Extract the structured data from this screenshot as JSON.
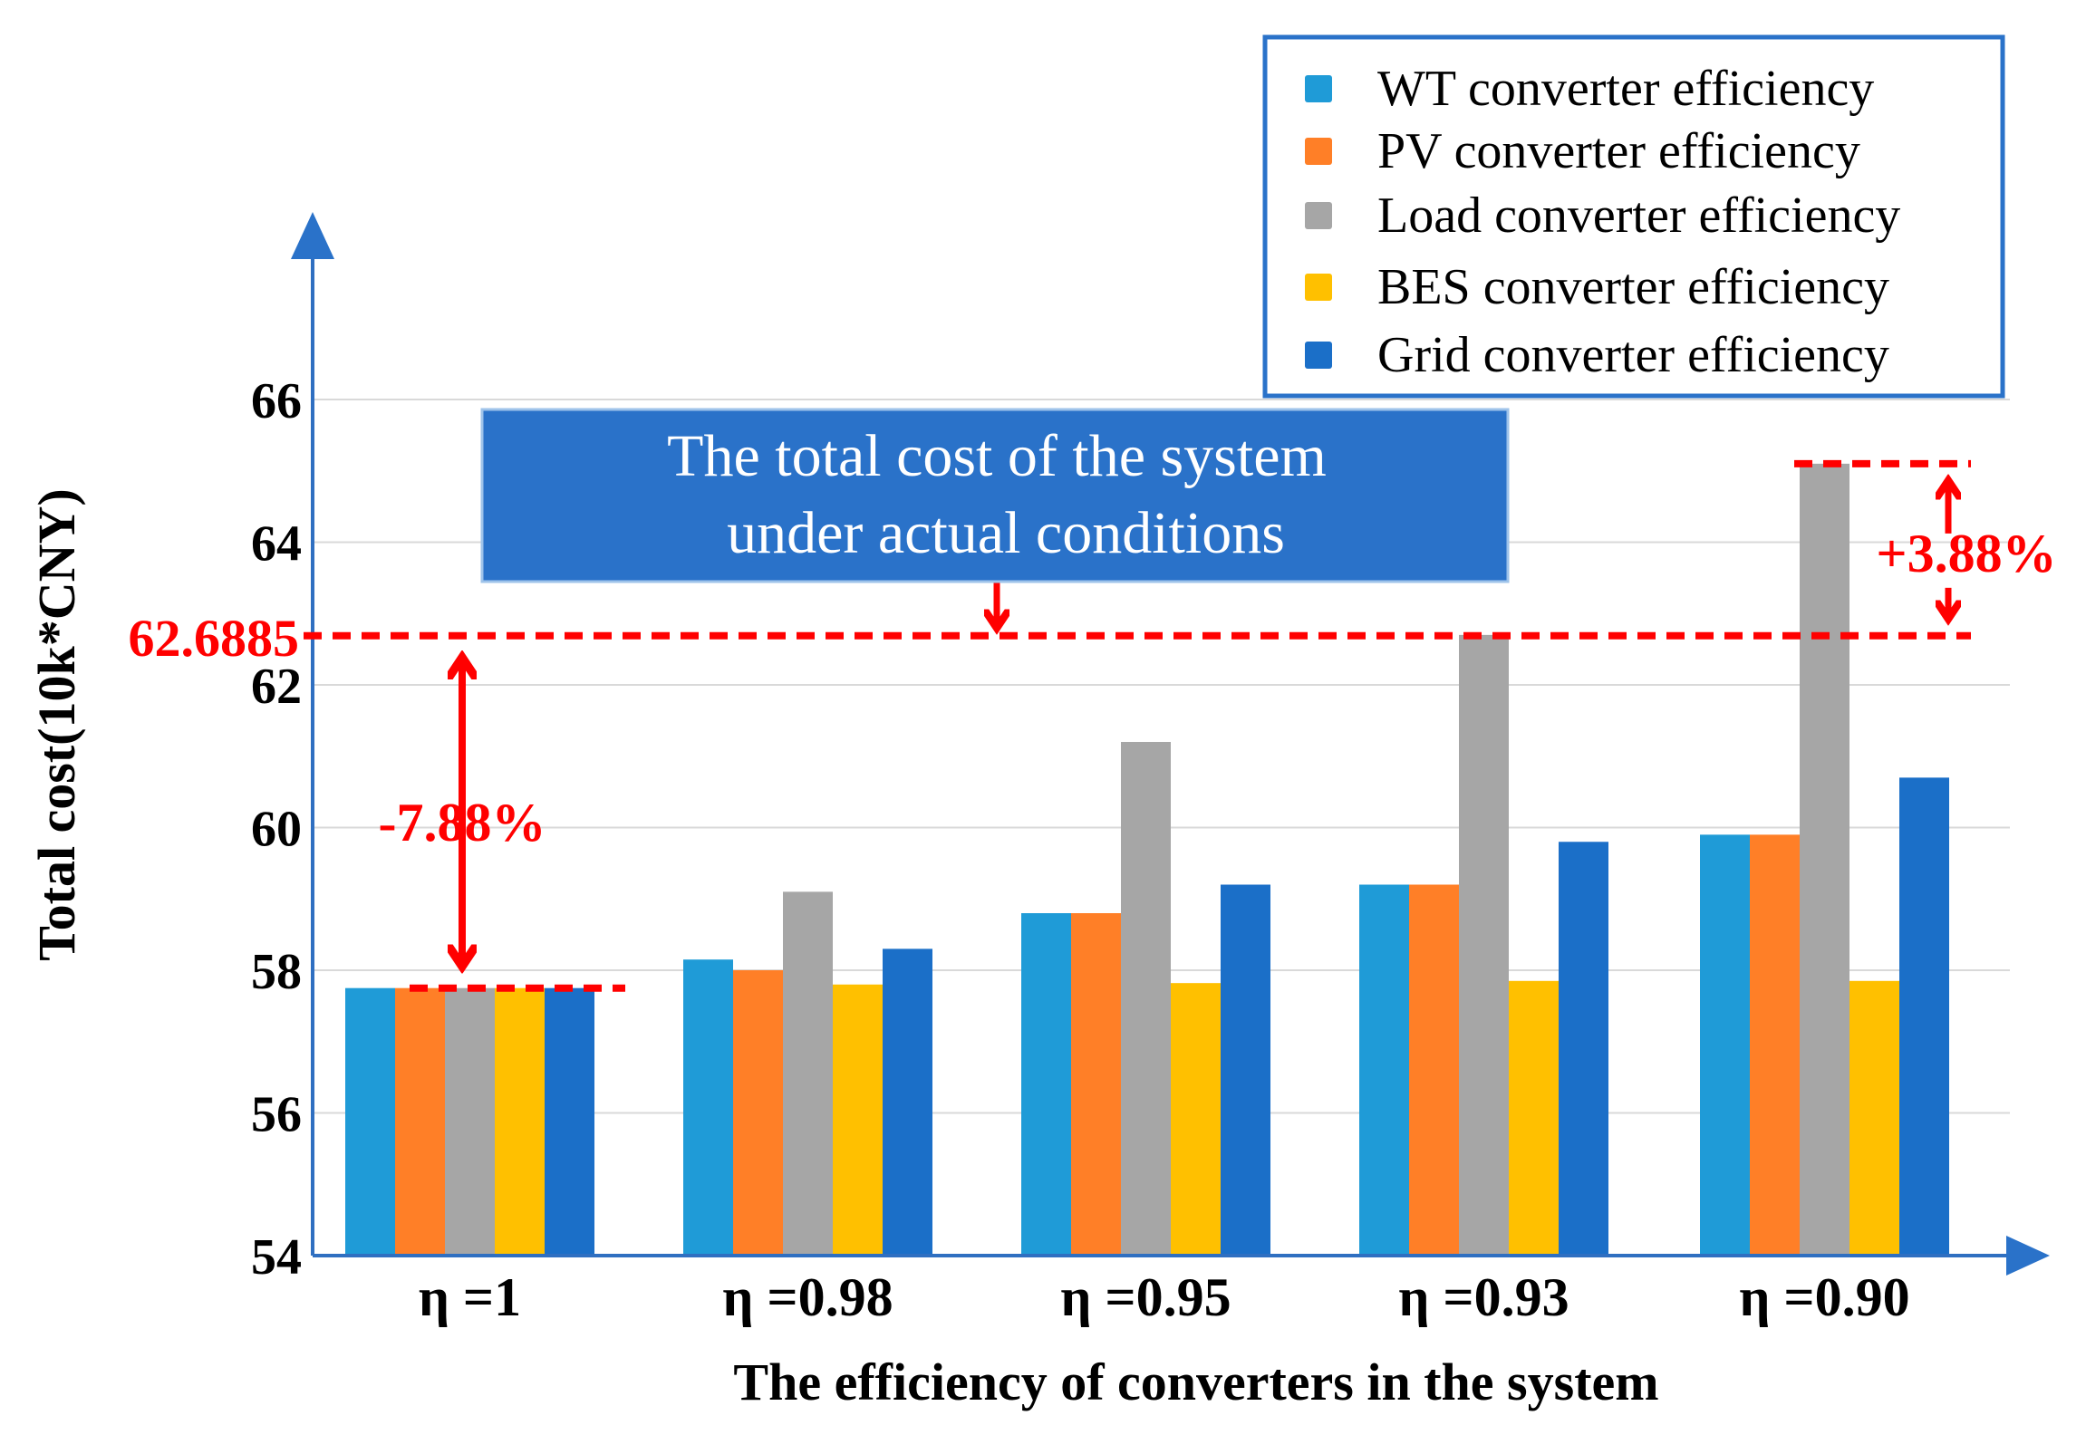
{
  "chart_data": {
    "type": "bar",
    "title": "",
    "xlabel": "The efficiency of converters in the system",
    "ylabel": "Total cost(10k*CNY)",
    "ylim": [
      54,
      68
    ],
    "yticks": [
      54,
      56,
      58,
      60,
      62,
      64,
      66
    ],
    "grid": true,
    "legend_position": "top-right",
    "categories": [
      "η =1",
      "η =0.98",
      "η =0.95",
      "η =0.93",
      "η =0.90"
    ],
    "series": [
      {
        "name": "WT converter efficiency",
        "color": "#1f9bd7",
        "values": [
          57.75,
          58.15,
          58.8,
          59.2,
          59.9
        ]
      },
      {
        "name": "PV converter efficiency",
        "color": "#ff7f27",
        "values": [
          57.75,
          58.0,
          58.8,
          59.2,
          59.9
        ]
      },
      {
        "name": "Load converter efficiency",
        "color": "#a6a6a6",
        "values": [
          57.75,
          59.1,
          61.2,
          62.7,
          65.1
        ]
      },
      {
        "name": "BES converter efficiency",
        "color": "#ffc000",
        "values": [
          57.75,
          57.8,
          57.82,
          57.85,
          57.85
        ]
      },
      {
        "name": "Grid converter efficiency",
        "color": "#1b6fc8",
        "values": [
          57.75,
          58.3,
          59.2,
          59.8,
          60.7
        ]
      }
    ],
    "annotations": {
      "reference_label": "62.6885",
      "reference_value": 62.6885,
      "baseline_value": 57.75,
      "peak_value": 65.1,
      "decrease_label": "-7.88%",
      "increase_label": "+3.88%",
      "callout_text": [
        "The total cost of the system",
        "under actual conditions"
      ]
    }
  }
}
